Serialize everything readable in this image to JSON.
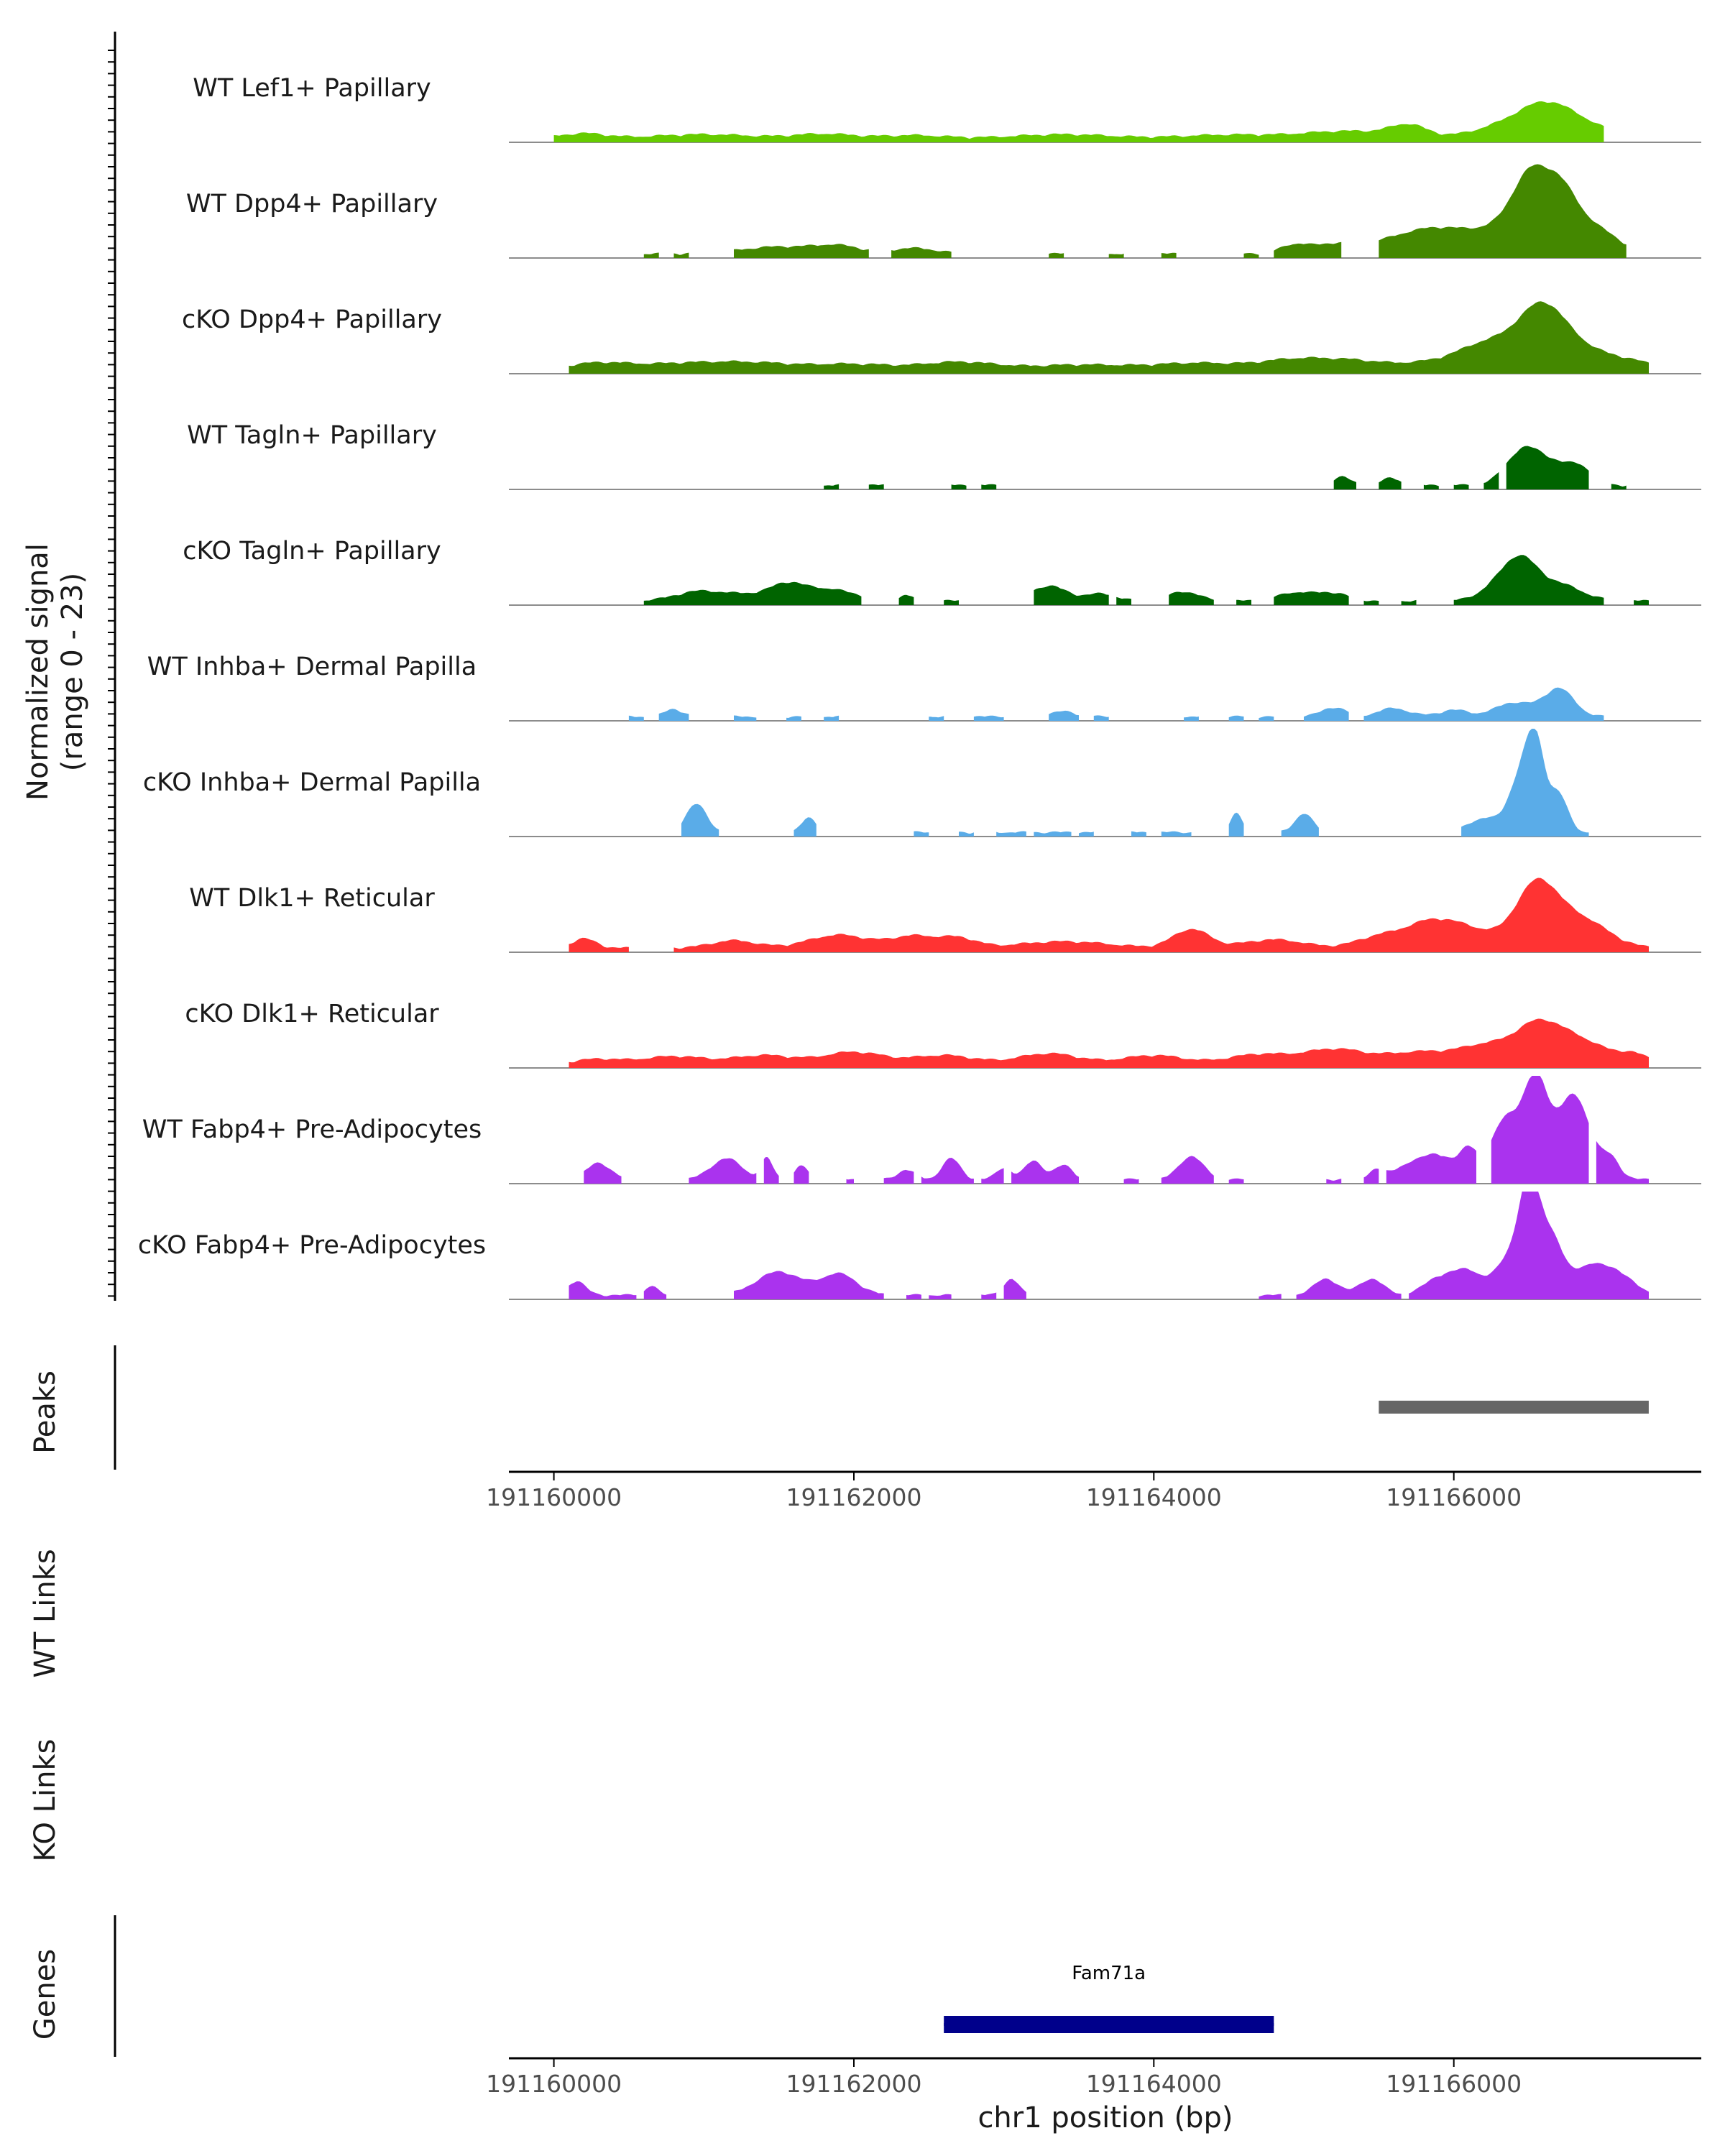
{
  "chart_data": {
    "type": "area",
    "title": "",
    "xlabel": "chr1 position (bp)",
    "xlim": [
      191159700,
      191167650
    ],
    "x_ticks": [
      191160000,
      191162000,
      191164000,
      191166000
    ],
    "x_tick_labels": [
      "191160000",
      "191162000",
      "191164000",
      "191166000"
    ],
    "signal_axis": {
      "label_line1": "Normalized signal",
      "label_line2": "(range 0 - 23)",
      "range": [
        0,
        23
      ]
    },
    "tracks": [
      {
        "name": "WT Lef1+ Papillary",
        "color": "#66cc00",
        "segments": [
          [
            191160000,
            191167000
          ]
        ],
        "bumps": [
          [
            191160200,
            1.0,
            150
          ],
          [
            191161000,
            0.8,
            300
          ],
          [
            191161800,
            0.9,
            200
          ],
          [
            191162400,
            0.6,
            200
          ],
          [
            191163400,
            0.8,
            300
          ],
          [
            191164500,
            0.7,
            300
          ],
          [
            191165300,
            1.5,
            300
          ],
          [
            191165700,
            2.4,
            120
          ],
          [
            191166300,
            2.0,
            200
          ],
          [
            191166600,
            6.0,
            180
          ],
          [
            191166850,
            2.5,
            200
          ]
        ]
      },
      {
        "name": "WT Dpp4+ Papillary",
        "color": "#448800",
        "segments": [
          [
            191160600,
            191160700
          ],
          [
            191160800,
            191160900
          ],
          [
            191161200,
            191162100
          ],
          [
            191162250,
            191162650
          ],
          [
            191163300,
            191163400
          ],
          [
            191163700,
            191163800
          ],
          [
            191164050,
            191164150
          ],
          [
            191164600,
            191164700
          ],
          [
            191164800,
            191165250
          ],
          [
            191165500,
            191167150
          ]
        ],
        "bumps": [
          [
            191161500,
            1.5,
            250
          ],
          [
            191161900,
            1.5,
            150
          ],
          [
            191162400,
            1.2,
            150
          ],
          [
            191164950,
            2.0,
            100
          ],
          [
            191165200,
            1.5,
            100
          ],
          [
            191165700,
            3.0,
            300
          ],
          [
            191166000,
            3.5,
            250
          ],
          [
            191166350,
            4.0,
            150
          ],
          [
            191166500,
            12.0,
            110
          ],
          [
            191166700,
            13.0,
            120
          ],
          [
            191166950,
            5.0,
            150
          ]
        ]
      },
      {
        "name": "cKO Dpp4+ Papillary",
        "color": "#448800",
        "segments": [
          [
            191160100,
            191167300
          ]
        ],
        "bumps": [
          [
            191160300,
            1.4,
            200
          ],
          [
            191160800,
            1.0,
            250
          ],
          [
            191161300,
            1.5,
            300
          ],
          [
            191162000,
            1.1,
            250
          ],
          [
            191162700,
            1.6,
            250
          ],
          [
            191163500,
            1.0,
            300
          ],
          [
            191164300,
            1.4,
            300
          ],
          [
            191164900,
            1.6,
            200
          ],
          [
            191165300,
            2.0,
            250
          ],
          [
            191165900,
            1.6,
            200
          ],
          [
            191166150,
            2.5,
            150
          ],
          [
            191166400,
            5.0,
            200
          ],
          [
            191166600,
            9.5,
            150
          ],
          [
            191166850,
            4.0,
            200
          ],
          [
            191167200,
            1.3,
            150
          ]
        ]
      },
      {
        "name": "WT Tagln+ Papillary",
        "color": "#006400",
        "segments": [
          [
            191161800,
            191161900
          ],
          [
            191162100,
            191162200
          ],
          [
            191162650,
            191162750
          ],
          [
            191162850,
            191162950
          ],
          [
            191165200,
            191165350
          ],
          [
            191165500,
            191165650
          ],
          [
            191165800,
            191165900
          ],
          [
            191166000,
            191166100
          ],
          [
            191166200,
            191166300
          ],
          [
            191166350,
            191166900
          ],
          [
            191167050,
            191167150
          ]
        ],
        "bumps": [
          [
            191165250,
            1.8,
            60
          ],
          [
            191165580,
            1.5,
            60
          ],
          [
            191166450,
            6.5,
            110
          ],
          [
            191166650,
            4.5,
            130
          ],
          [
            191166850,
            3.0,
            80
          ]
        ]
      },
      {
        "name": "cKO Tagln+ Papillary",
        "color": "#006400",
        "segments": [
          [
            191160600,
            191162050
          ],
          [
            191162300,
            191162400
          ],
          [
            191162600,
            191162700
          ],
          [
            191163200,
            191163700
          ],
          [
            191163750,
            191163850
          ],
          [
            191164100,
            191164400
          ],
          [
            191164550,
            191164650
          ],
          [
            191164800,
            191165300
          ],
          [
            191165400,
            191165500
          ],
          [
            191165650,
            191165750
          ],
          [
            191166000,
            191167000
          ],
          [
            191167200,
            191167300
          ]
        ],
        "bumps": [
          [
            191160950,
            1.8,
            150
          ],
          [
            191161300,
            1.4,
            200
          ],
          [
            191161550,
            2.2,
            100
          ],
          [
            191161800,
            2.6,
            200
          ],
          [
            191162350,
            1.2,
            40
          ],
          [
            191163300,
            3.2,
            120
          ],
          [
            191163650,
            1.5,
            100
          ],
          [
            191164200,
            2.0,
            100
          ],
          [
            191164950,
            1.8,
            120
          ],
          [
            191165200,
            1.6,
            100
          ],
          [
            191166300,
            3.0,
            120
          ],
          [
            191166450,
            7.5,
            110
          ],
          [
            191166700,
            3.5,
            150
          ]
        ]
      },
      {
        "name": "WT Inhba+ Dermal Papilla",
        "color": "#5aace8",
        "segments": [
          [
            191160500,
            191160600
          ],
          [
            191160700,
            191160900
          ],
          [
            191161200,
            191161350
          ],
          [
            191161550,
            191161650
          ],
          [
            191161800,
            191161900
          ],
          [
            191162500,
            191162600
          ],
          [
            191162800,
            191163000
          ],
          [
            191163300,
            191163500
          ],
          [
            191163600,
            191163700
          ],
          [
            191164200,
            191164300
          ],
          [
            191164500,
            191164600
          ],
          [
            191164700,
            191164800
          ],
          [
            191165000,
            191165300
          ],
          [
            191165400,
            191167000
          ]
        ],
        "bumps": [
          [
            191160800,
            1.6,
            60
          ],
          [
            191163400,
            1.1,
            80
          ],
          [
            191165200,
            2.0,
            80
          ],
          [
            191165600,
            1.8,
            100
          ],
          [
            191166000,
            1.4,
            100
          ],
          [
            191166400,
            3.0,
            120
          ],
          [
            191166700,
            6.0,
            100
          ]
        ]
      },
      {
        "name": "cKO Inhba+ Dermal Papilla",
        "color": "#5aace8",
        "segments": [
          [
            191160850,
            191161100
          ],
          [
            191161600,
            191161750
          ],
          [
            191162400,
            191162500
          ],
          [
            191162700,
            191162800
          ],
          [
            191162950,
            191163150
          ],
          [
            191163200,
            191163450
          ],
          [
            191163500,
            191163600
          ],
          [
            191163850,
            191163950
          ],
          [
            191164050,
            191164250
          ],
          [
            191164500,
            191164600
          ],
          [
            191164850,
            191165100
          ],
          [
            191166050,
            191166900
          ]
        ],
        "bumps": [
          [
            191160950,
            6.0,
            70
          ],
          [
            191161700,
            3.0,
            50
          ],
          [
            191164550,
            4.0,
            40
          ],
          [
            191165000,
            4.0,
            60
          ],
          [
            191166200,
            3.0,
            100
          ],
          [
            191166450,
            12.0,
            80
          ],
          [
            191166550,
            16.0,
            60
          ],
          [
            191166700,
            8.0,
            60
          ]
        ]
      },
      {
        "name": "WT Dlk1+ Reticular",
        "color": "#ff3333",
        "segments": [
          [
            191160100,
            191160500
          ],
          [
            191160800,
            191167300
          ]
        ],
        "bumps": [
          [
            191160200,
            2.0,
            80
          ],
          [
            191161200,
            1.6,
            150
          ],
          [
            191161900,
            2.8,
            200
          ],
          [
            191162400,
            2.5,
            150
          ],
          [
            191162700,
            2.0,
            120
          ],
          [
            191163400,
            1.4,
            300
          ],
          [
            191164250,
            4.0,
            120
          ],
          [
            191164800,
            1.8,
            200
          ],
          [
            191165500,
            2.4,
            150
          ],
          [
            191165800,
            3.5,
            150
          ],
          [
            191166050,
            4.5,
            200
          ],
          [
            191166550,
            13.0,
            140
          ],
          [
            191166850,
            6.0,
            180
          ]
        ]
      },
      {
        "name": "cKO Dlk1+ Reticular",
        "color": "#ff3333",
        "segments": [
          [
            191160100,
            191167300
          ]
        ],
        "bumps": [
          [
            191160300,
            1.0,
            150
          ],
          [
            191160800,
            1.6,
            200
          ],
          [
            191161400,
            1.8,
            200
          ],
          [
            191162000,
            2.5,
            200
          ],
          [
            191162600,
            1.8,
            200
          ],
          [
            191163300,
            2.2,
            200
          ],
          [
            191164000,
            1.8,
            200
          ],
          [
            191164700,
            2.0,
            200
          ],
          [
            191165200,
            3.0,
            200
          ],
          [
            191165800,
            2.6,
            250
          ],
          [
            191166200,
            3.0,
            150
          ],
          [
            191166550,
            8.0,
            160
          ],
          [
            191166850,
            4.5,
            180
          ],
          [
            191167200,
            1.8,
            100
          ]
        ]
      },
      {
        "name": "WT Fabp4+ Pre-Adipocytes",
        "color": "#aa33ee",
        "segments": [
          [
            191160200,
            191160450
          ],
          [
            191160900,
            191161350
          ],
          [
            191161400,
            191161500
          ],
          [
            191161600,
            191161700
          ],
          [
            191161950,
            191162000
          ],
          [
            191162200,
            191162400
          ],
          [
            191162450,
            191162800
          ],
          [
            191162850,
            191163000
          ],
          [
            191163050,
            191163500
          ],
          [
            191163800,
            191163900
          ],
          [
            191164050,
            191164400
          ],
          [
            191164500,
            191164600
          ],
          [
            191165150,
            191165250
          ],
          [
            191165400,
            191165500
          ],
          [
            191165550,
            191166150
          ],
          [
            191166250,
            191166900
          ],
          [
            191166950,
            191167300
          ]
        ],
        "bumps": [
          [
            191160300,
            3.5,
            80
          ],
          [
            191161150,
            4.5,
            100
          ],
          [
            191161420,
            4.5,
            40
          ],
          [
            191161650,
            3.0,
            40
          ],
          [
            191162350,
            2.0,
            60
          ],
          [
            191162650,
            4.5,
            60
          ],
          [
            191163000,
            2.5,
            50
          ],
          [
            191163200,
            4.0,
            60
          ],
          [
            191163400,
            3.0,
            60
          ],
          [
            191164250,
            5.0,
            80
          ],
          [
            191165480,
            2.0,
            50
          ],
          [
            191165700,
            3.0,
            100
          ],
          [
            191165900,
            5.0,
            100
          ],
          [
            191166100,
            6.0,
            60
          ],
          [
            191166350,
            13.0,
            100
          ],
          [
            191166550,
            20.0,
            80
          ],
          [
            191166800,
            18.0,
            110
          ],
          [
            191167050,
            4.0,
            60
          ]
        ]
      },
      {
        "name": "cKO Fabp4+ Pre-Adipocytes",
        "color": "#aa33ee",
        "segments": [
          [
            191160100,
            191160550
          ],
          [
            191160600,
            191160750
          ],
          [
            191161200,
            191162200
          ],
          [
            191162350,
            191162450
          ],
          [
            191162500,
            191162650
          ],
          [
            191162850,
            191162950
          ],
          [
            191163000,
            191163150
          ],
          [
            191164700,
            191164850
          ],
          [
            191164950,
            191165650
          ],
          [
            191165700,
            191167300
          ]
        ],
        "bumps": [
          [
            191160150,
            3.0,
            60
          ],
          [
            191160650,
            2.0,
            40
          ],
          [
            191161500,
            5.0,
            150
          ],
          [
            191161900,
            4.5,
            120
          ],
          [
            191163050,
            3.5,
            50
          ],
          [
            191165150,
            3.5,
            80
          ],
          [
            191165450,
            3.5,
            80
          ],
          [
            191165900,
            3.5,
            100
          ],
          [
            191166100,
            5.0,
            100
          ],
          [
            191166350,
            6.5,
            80
          ],
          [
            191166500,
            23.0,
            70
          ],
          [
            191166650,
            12.0,
            80
          ],
          [
            191166900,
            6.0,
            100
          ],
          [
            191167100,
            4.5,
            100
          ]
        ]
      }
    ],
    "peaks": {
      "label": "Peaks",
      "color": "#666666",
      "intervals": [
        [
          191165500,
          191167300
        ]
      ]
    },
    "links": [
      {
        "label": "WT Links",
        "items": []
      },
      {
        "label": "KO Links",
        "items": []
      }
    ],
    "genes": {
      "label": "Genes",
      "color": "#00008b",
      "items": [
        {
          "name": "Fam71a",
          "start": 191162600,
          "end": 191164800
        }
      ]
    }
  }
}
